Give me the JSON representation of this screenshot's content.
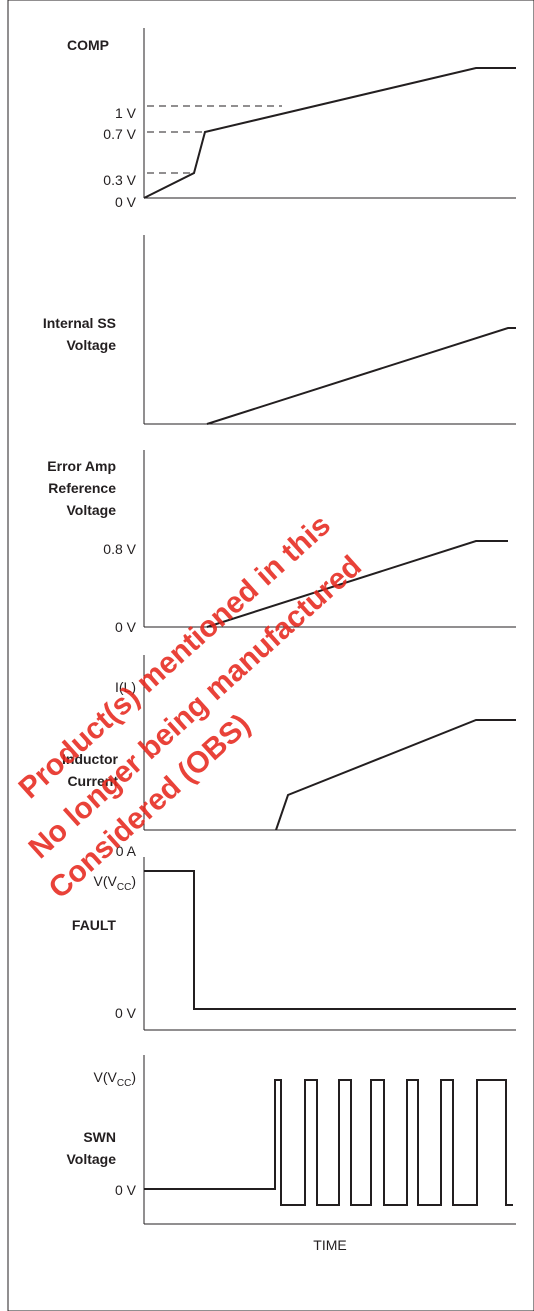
{
  "colors": {
    "ink": "#231f20",
    "watermark": "#e6281e"
  },
  "panels": {
    "comp": {
      "title": "COMP",
      "levels": [
        "1 V",
        "0.7 V",
        "0.3 V",
        "0 V"
      ]
    },
    "internal_ss": {
      "title_line1": "Internal SS",
      "title_line2": "Voltage"
    },
    "error_amp": {
      "title_line1": "Error Amp",
      "title_line2": "Reference",
      "title_line3": "Voltage",
      "level_high": "0.8 V",
      "level_low": "0 V"
    },
    "inductor": {
      "title_line1": "Inductor",
      "title_line2": "Current",
      "level_high": "I(L)",
      "level_low": "0 A"
    },
    "fault": {
      "title": "FAULT",
      "level_high_main": "V(V",
      "level_high_sub": "CC",
      "level_high_end": ")",
      "level_low": "0 V"
    },
    "swn": {
      "title_line1": "SWN",
      "title_line2": "Voltage",
      "level_high_main": "V(V",
      "level_high_sub": "CC",
      "level_high_end": ")",
      "level_low": "0 V"
    }
  },
  "time_axis_label": "TIME",
  "watermark": {
    "line1": "Product(s) mentioned in this",
    "line2": "No longer being manufactured",
    "line3": "Considered (OBS)"
  }
}
